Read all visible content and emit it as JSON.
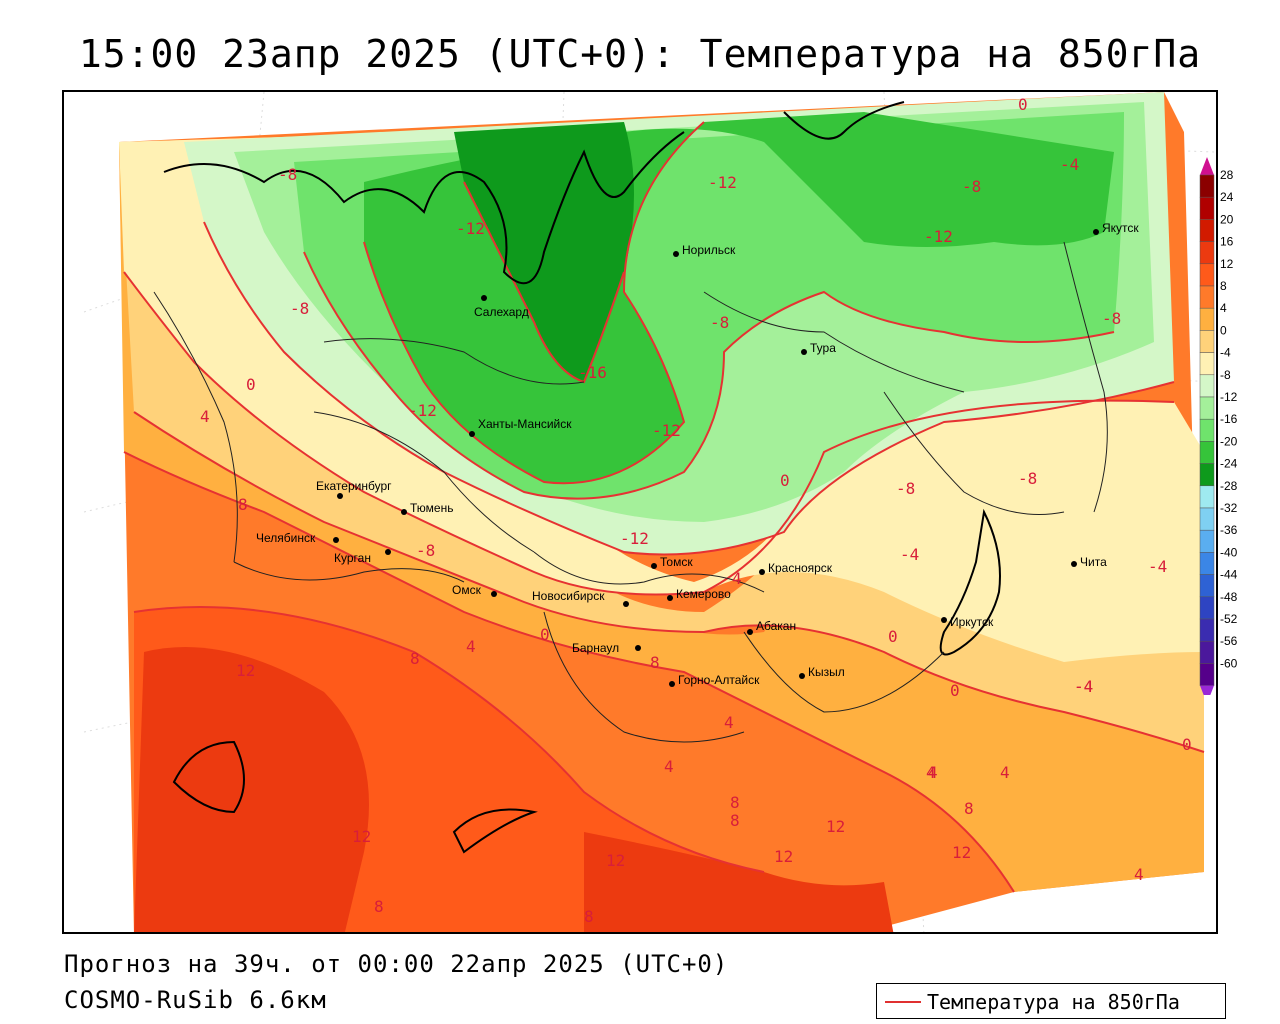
{
  "header": {
    "title": "15:00 23апр 2025 (UTC+0): Температура на 850гПа"
  },
  "footer": {
    "forecast": "Прогноз на 39ч. от 00:00 22апр 2025 (UTC+0)",
    "model": "COSMO-RuSib 6.6км"
  },
  "legend": {
    "label": "Температура на 850гПа",
    "line_color": "#e03030"
  },
  "colorbar": {
    "ticks": [
      "28",
      "24",
      "20",
      "16",
      "12",
      "8",
      "4",
      "0",
      "-4",
      "-8",
      "-12",
      "-16",
      "-20",
      "-24",
      "-28",
      "-32",
      "-36",
      "-40",
      "-44",
      "-48",
      "-52",
      "-56",
      "-60"
    ],
    "colors": [
      "#8b0000",
      "#b00000",
      "#d21a00",
      "#ec3a10",
      "#ff5a1a",
      "#ff7a2a",
      "#ffb040",
      "#ffd27a",
      "#fff1b4",
      "#d4f7c8",
      "#a4f09a",
      "#6fe36c",
      "#36c43a",
      "#0e9a1c",
      "#9feaf0",
      "#7fd0f2",
      "#5aaef0",
      "#3b86e6",
      "#2e62d4",
      "#2e44c2",
      "#3a2cb0",
      "#4b189c",
      "#55008a"
    ],
    "top_arrow_color": "#d01090",
    "bottom_arrow_color": "#9a28d6"
  },
  "map": {
    "colors": {
      "deep_green": "#0e9a1c",
      "green": "#36c43a",
      "mid_green": "#6fe36c",
      "light_green": "#a4f09a",
      "pale_green": "#d4f7c8",
      "pale_yellow": "#fff1b4",
      "yellow": "#ffd27a",
      "light_orange": "#ffb040",
      "orange": "#ff7a2a",
      "red_orange": "#ff5a1a",
      "red": "#ec3a10",
      "contour": "#e63232"
    },
    "cities": [
      {
        "name": "Салехард"
      },
      {
        "name": "Норильск"
      },
      {
        "name": "Якутск"
      },
      {
        "name": "Тура"
      },
      {
        "name": "Ханты-Мансийск"
      },
      {
        "name": "Екатеринбург"
      },
      {
        "name": "Тюмень"
      },
      {
        "name": "Челябинск"
      },
      {
        "name": "Курган"
      },
      {
        "name": "Омск"
      },
      {
        "name": "Новосибирск"
      },
      {
        "name": "Томск"
      },
      {
        "name": "Кемерово"
      },
      {
        "name": "Красноярск"
      },
      {
        "name": "Барнаул"
      },
      {
        "name": "Абакан"
      },
      {
        "name": "Горно-Алтайск"
      },
      {
        "name": "Кызыл"
      },
      {
        "name": "Иркутск"
      },
      {
        "name": "Чита"
      }
    ],
    "isotherm_labels": [
      "0",
      "-4",
      "-8",
      "-8",
      "-12",
      "-12",
      "-12",
      "-12",
      "-16",
      "-12",
      "-12",
      "-8",
      "-8",
      "-8",
      "-8",
      "-8",
      "-8",
      "-4",
      "-4",
      "-4",
      "0",
      "0",
      "0",
      "0",
      "4",
      "4",
      "4",
      "4",
      "4",
      "4",
      "4",
      "8",
      "8",
      "8",
      "8",
      "8",
      "8",
      "8",
      "12",
      "12",
      "12",
      "12",
      "12",
      "12",
      "4",
      "-4",
      "0",
      "0",
      "8",
      "4"
    ]
  }
}
